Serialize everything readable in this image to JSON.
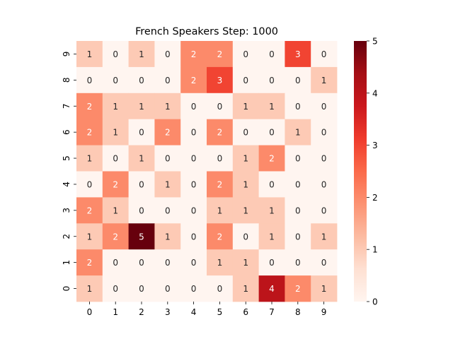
{
  "chart_data": {
    "type": "heatmap",
    "title": "French Speakers Step: 1000",
    "xlabel": "",
    "ylabel": "",
    "x_categories": [
      "0",
      "1",
      "2",
      "3",
      "4",
      "5",
      "6",
      "7",
      "8",
      "9"
    ],
    "y_categories": [
      "9",
      "8",
      "7",
      "6",
      "5",
      "4",
      "3",
      "2",
      "1",
      "0"
    ],
    "values": [
      [
        1,
        0,
        1,
        0,
        2,
        2,
        0,
        0,
        3,
        0
      ],
      [
        0,
        0,
        0,
        0,
        2,
        3,
        0,
        0,
        0,
        1
      ],
      [
        2,
        1,
        1,
        1,
        0,
        0,
        1,
        1,
        0,
        0
      ],
      [
        2,
        1,
        0,
        2,
        0,
        2,
        0,
        0,
        1,
        0
      ],
      [
        1,
        0,
        1,
        0,
        0,
        0,
        1,
        2,
        0,
        0
      ],
      [
        0,
        2,
        0,
        1,
        0,
        2,
        1,
        0,
        0,
        0
      ],
      [
        2,
        1,
        0,
        0,
        0,
        1,
        1,
        1,
        0,
        0
      ],
      [
        1,
        2,
        5,
        1,
        0,
        2,
        0,
        1,
        0,
        1
      ],
      [
        2,
        0,
        0,
        0,
        0,
        1,
        1,
        0,
        0,
        0
      ],
      [
        1,
        0,
        0,
        0,
        0,
        0,
        1,
        4,
        2,
        1
      ]
    ],
    "colorbar": {
      "min": 0,
      "max": 5,
      "ticks": [
        "0",
        "1",
        "2",
        "3",
        "4",
        "5"
      ]
    },
    "colormap": "Reds",
    "colormap_stops": [
      "#fff5f0",
      "#fee0d2",
      "#fcbba1",
      "#fc9272",
      "#fb6a4a",
      "#ef3b2c",
      "#cb181d",
      "#a50f15",
      "#67000d"
    ],
    "annotation_colors": {
      "light_cells": "#262626",
      "dark_cells": "#ffffff"
    }
  }
}
